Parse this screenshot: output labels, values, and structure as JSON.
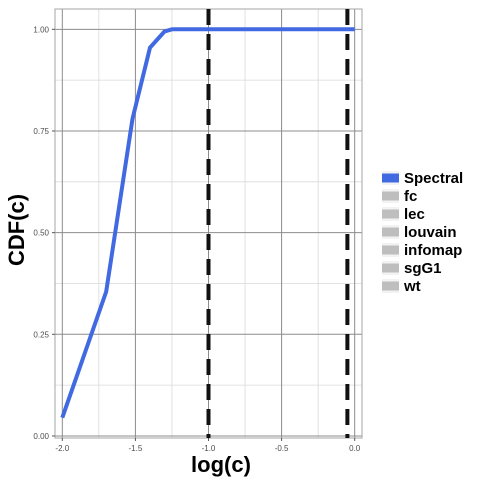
{
  "chart_data": {
    "type": "line",
    "title": "",
    "xlabel": "log(c)",
    "ylabel": "CDF(c)",
    "xlim": [
      -2.05,
      0.05
    ],
    "ylim": [
      -0.005,
      1.05
    ],
    "x_ticks": [
      -2.0,
      -1.5,
      -1.0,
      -0.5,
      0.0
    ],
    "x_tick_labels": [
      "-2.0",
      "-1.5",
      "-1.0",
      "-0.5",
      "0.0"
    ],
    "y_ticks": [
      0.0,
      0.25,
      0.5,
      0.75,
      1.0
    ],
    "y_tick_labels": [
      "0.00",
      "0.25",
      "0.50",
      "0.75",
      "1.00"
    ],
    "grid": true,
    "legend_position": "right",
    "legend": [
      {
        "label": "Spectral",
        "color": "#4169e1",
        "active": true
      },
      {
        "label": "fc",
        "color": "#bebebe",
        "active": false
      },
      {
        "label": "lec",
        "color": "#bebebe",
        "active": false
      },
      {
        "label": "louvain",
        "color": "#bebebe",
        "active": false
      },
      {
        "label": "infomap",
        "color": "#bebebe",
        "active": false
      },
      {
        "label": "sgG1",
        "color": "#bebebe",
        "active": false
      },
      {
        "label": "wt",
        "color": "#bebebe",
        "active": false
      }
    ],
    "series": [
      {
        "name": "Spectral",
        "color": "#4169e1",
        "x": [
          -2.0,
          -1.7,
          -1.52,
          -1.4,
          -1.3,
          -1.25,
          -1.2,
          -1.0,
          -0.5,
          0.0
        ],
        "y": [
          0.045,
          0.355,
          0.78,
          0.955,
          0.995,
          1.0,
          1.0,
          1.0,
          1.0,
          1.0
        ]
      }
    ],
    "vlines": [
      {
        "x": -1.0,
        "style": "dashed",
        "color": "#111111"
      },
      {
        "x": -0.05,
        "style": "dashed",
        "color": "#111111"
      }
    ]
  }
}
